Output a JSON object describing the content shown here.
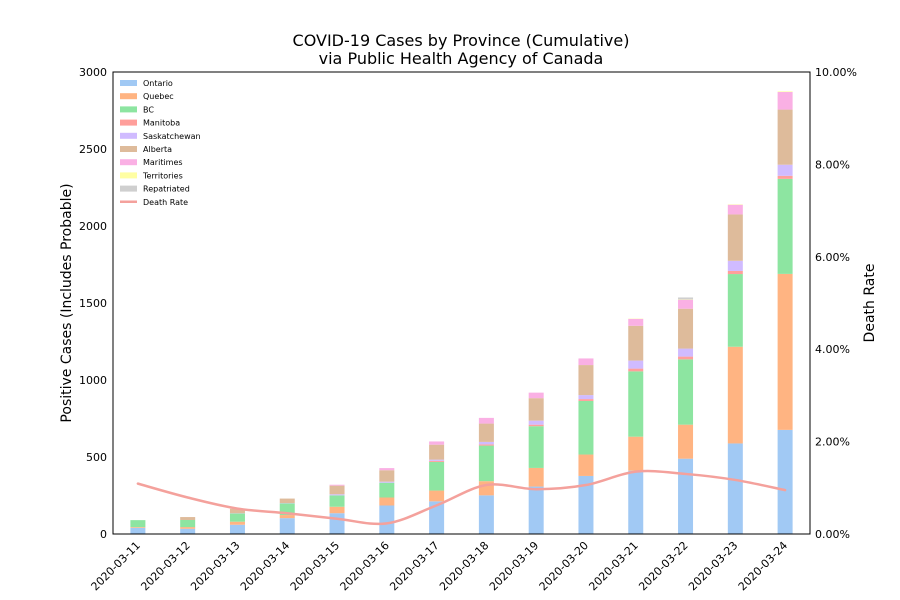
{
  "chart_data": {
    "type": "bar",
    "title": "COVID-19 Cases by Province (Cumulative)",
    "subtitle": "via Public Health Agency of Canada",
    "ylabel": "Positive Cases (Includes Probable)",
    "y2label": "Death Rate",
    "ylim": [
      0,
      3000
    ],
    "y2lim": [
      0,
      0.1
    ],
    "yticks": [
      "0",
      "500",
      "1000",
      "1500",
      "2000",
      "2500",
      "3000"
    ],
    "y2ticks": [
      "0.00%",
      "2.00%",
      "4.00%",
      "6.00%",
      "8.00%",
      "10.00%"
    ],
    "categories": [
      "2020-03-11",
      "2020-03-12",
      "2020-03-13",
      "2020-03-14",
      "2020-03-15",
      "2020-03-16",
      "2020-03-17",
      "2020-03-18",
      "2020-03-19",
      "2020-03-20",
      "2020-03-21",
      "2020-03-22",
      "2020-03-23",
      "2020-03-24"
    ],
    "stacked": true,
    "legend_position": "top-left",
    "series": [
      {
        "name": "Ontario",
        "color": "#a1c9f4",
        "values": [
          40,
          34,
          60,
          103,
          135,
          185,
          212,
          251,
          308,
          377,
          411,
          489,
          588,
          676
        ]
      },
      {
        "name": "Quebec",
        "color": "#ffb482",
        "values": [
          5,
          11,
          20,
          20,
          42,
          52,
          70,
          92,
          121,
          139,
          221,
          221,
          628,
          1013
        ]
      },
      {
        "name": "BC",
        "color": "#8de5a1",
        "values": [
          45,
          46,
          53,
          76,
          74,
          96,
          186,
          231,
          271,
          348,
          424,
          424,
          472,
          617
        ]
      },
      {
        "name": "Manitoba",
        "color": "#ff9f9b",
        "values": [
          0,
          0,
          0,
          0,
          0,
          0,
          7,
          8,
          10,
          12,
          18,
          18,
          20,
          20
        ]
      },
      {
        "name": "Saskatchewan",
        "color": "#d0bbff",
        "values": [
          0,
          0,
          2,
          2,
          7,
          7,
          8,
          16,
          26,
          26,
          52,
          52,
          66,
          72
        ]
      },
      {
        "name": "Alberta",
        "color": "#debb9b",
        "values": [
          0,
          19,
          29,
          29,
          56,
          74,
          97,
          119,
          146,
          195,
          226,
          259,
          301,
          358
        ]
      },
      {
        "name": "Maritimes",
        "color": "#fab0e4",
        "values": [
          0,
          0,
          0,
          0,
          6,
          14,
          21,
          37,
          36,
          43,
          45,
          58,
          63,
          114
        ]
      },
      {
        "name": "Territories",
        "color": "#fffea3",
        "values": [
          0,
          0,
          0,
          0,
          0,
          0,
          0,
          0,
          0,
          0,
          2,
          2,
          3,
          4
        ]
      },
      {
        "name": "Repatriated",
        "color": "#cfcfcf",
        "values": [
          0,
          0,
          0,
          0,
          0,
          0,
          0,
          0,
          0,
          0,
          0,
          13,
          0,
          0
        ]
      }
    ],
    "line_series": {
      "name": "Death Rate",
      "color": "#f4a19c",
      "axis": "right",
      "values": [
        0.0109,
        0.0079,
        0.0055,
        0.0045,
        0.0033,
        0.0023,
        0.0062,
        0.0106,
        0.0097,
        0.0106,
        0.0135,
        0.013,
        0.0117,
        0.0095
      ]
    }
  }
}
